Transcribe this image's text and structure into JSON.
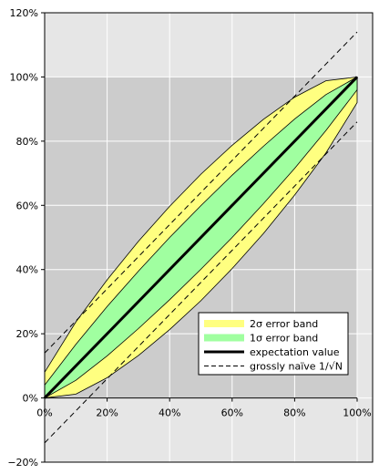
{
  "chart_data": {
    "type": "area",
    "title": "",
    "xlabel": "",
    "ylabel": "",
    "xlim": [
      0,
      100
    ],
    "ylim": [
      -20,
      120
    ],
    "x_ticks": [
      0,
      20,
      40,
      60,
      80,
      100
    ],
    "x_tick_labels": [
      "0%",
      "20%",
      "40%",
      "60%",
      "80%",
      "100%"
    ],
    "y_ticks": [
      -20,
      0,
      20,
      40,
      60,
      80,
      100,
      120
    ],
    "y_tick_labels": [
      "−20%",
      "0%",
      "20%",
      "40%",
      "60%",
      "80%",
      "100%",
      "120%"
    ],
    "grid": true,
    "legend_position": "bottom-right",
    "legend": [
      {
        "label": "2σ error band",
        "style": "band",
        "color": "#ffff80"
      },
      {
        "label": "1σ error band",
        "style": "band",
        "color": "#a0ffa0"
      },
      {
        "label": "expectation value",
        "style": "thick-line",
        "color": "#000000"
      },
      {
        "label": "grossly naïve 1/√N",
        "style": "dashed-line",
        "color": "#000000"
      }
    ],
    "series": [
      {
        "name": "2σ error band",
        "style": "band",
        "x": [
          0,
          10,
          20,
          30,
          40,
          50,
          60,
          70,
          80,
          90,
          100
        ],
        "lower": [
          0,
          1.2,
          6.3,
          13.2,
          21.3,
          30.3,
          40.3,
          51.2,
          63.2,
          76.3,
          92
        ],
        "upper": [
          8,
          23.7,
          36.8,
          48.8,
          59.7,
          69.7,
          78.7,
          86.8,
          93.7,
          98.8,
          100
        ]
      },
      {
        "name": "1σ error band",
        "style": "band",
        "x": [
          0,
          10,
          20,
          30,
          40,
          50,
          60,
          70,
          80,
          90,
          100
        ],
        "lower": [
          0,
          5.5,
          13.1,
          21.6,
          30.6,
          40.1,
          50,
          60.5,
          71.5,
          83.3,
          96
        ],
        "upper": [
          4,
          16.7,
          28.5,
          39.5,
          50,
          59.9,
          69.4,
          78.4,
          86.9,
          94.5,
          100
        ]
      },
      {
        "name": "expectation value",
        "style": "thick-line",
        "x": [
          0,
          100
        ],
        "y": [
          0,
          100
        ]
      },
      {
        "name": "grossly naïve 1/√N",
        "style": "dashed-line",
        "x": [
          0,
          100
        ],
        "lower": [
          -14,
          86
        ],
        "upper": [
          14,
          114
        ]
      }
    ]
  },
  "colors": {
    "outer_background": "#e6e6e6",
    "plot_background": "#cccccc",
    "gridline": "#ffffff",
    "band_2sigma": "#ffff80",
    "band_1sigma": "#a0ffa0"
  }
}
